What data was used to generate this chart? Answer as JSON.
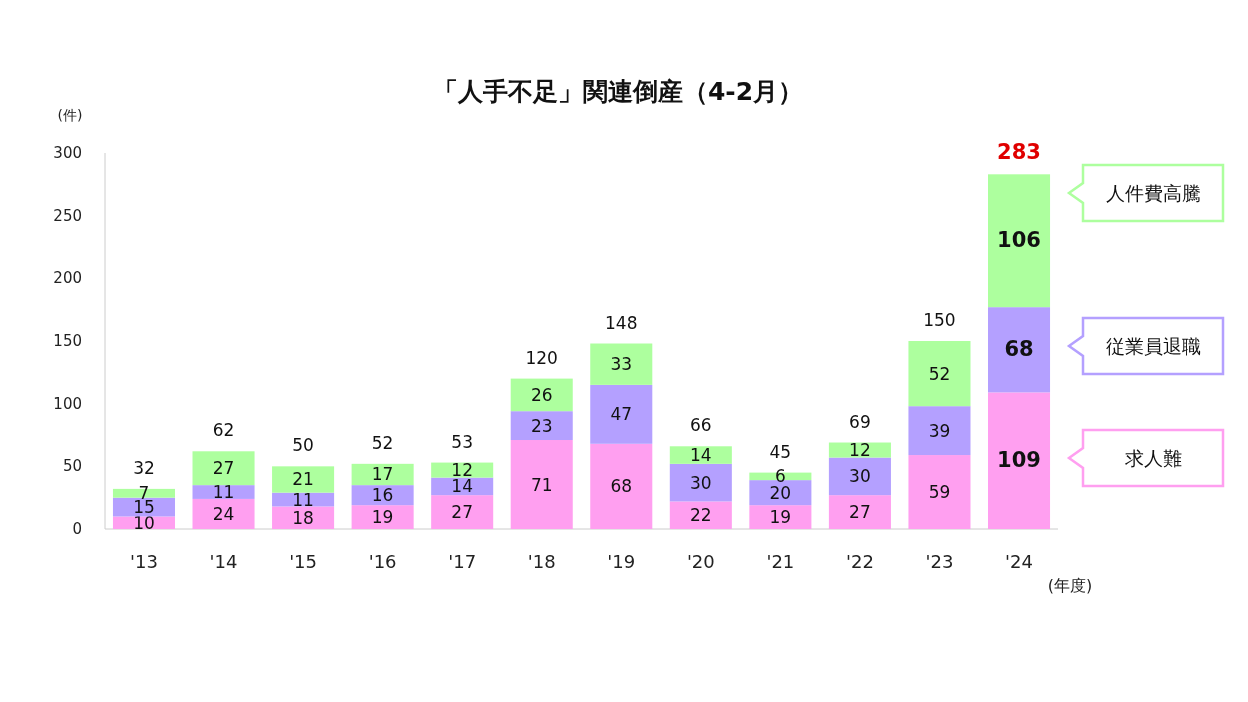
{
  "chart_data": {
    "type": "bar",
    "title": "「人手不足」関連倒産（4-2月）",
    "ylabel": "(件)",
    "xlabel": "(年度)",
    "categories": [
      "'13",
      "'14",
      "'15",
      "'16",
      "'17",
      "'18",
      "'19",
      "'20",
      "'21",
      "'22",
      "'23",
      "'24"
    ],
    "stacked": true,
    "series": [
      {
        "name": "求人難",
        "color": "#ff9ff0",
        "values": [
          10,
          24,
          18,
          19,
          27,
          71,
          68,
          22,
          19,
          27,
          59,
          109
        ]
      },
      {
        "name": "従業員退職",
        "color": "#b4a0ff",
        "values": [
          15,
          11,
          11,
          16,
          14,
          23,
          47,
          30,
          20,
          30,
          39,
          68
        ]
      },
      {
        "name": "人件費高騰",
        "color": "#adff9e",
        "values": [
          7,
          27,
          21,
          17,
          12,
          26,
          33,
          14,
          6,
          12,
          52,
          106
        ]
      }
    ],
    "totals": [
      "32",
      "62",
      "50",
      "52",
      "53",
      "120",
      "148",
      "66",
      "45",
      "69",
      "150",
      "283"
    ],
    "data_labels": true,
    "ylim": [
      0,
      300
    ],
    "yticks": [
      0,
      50,
      100,
      150,
      200,
      250,
      300
    ],
    "legend": "right"
  }
}
